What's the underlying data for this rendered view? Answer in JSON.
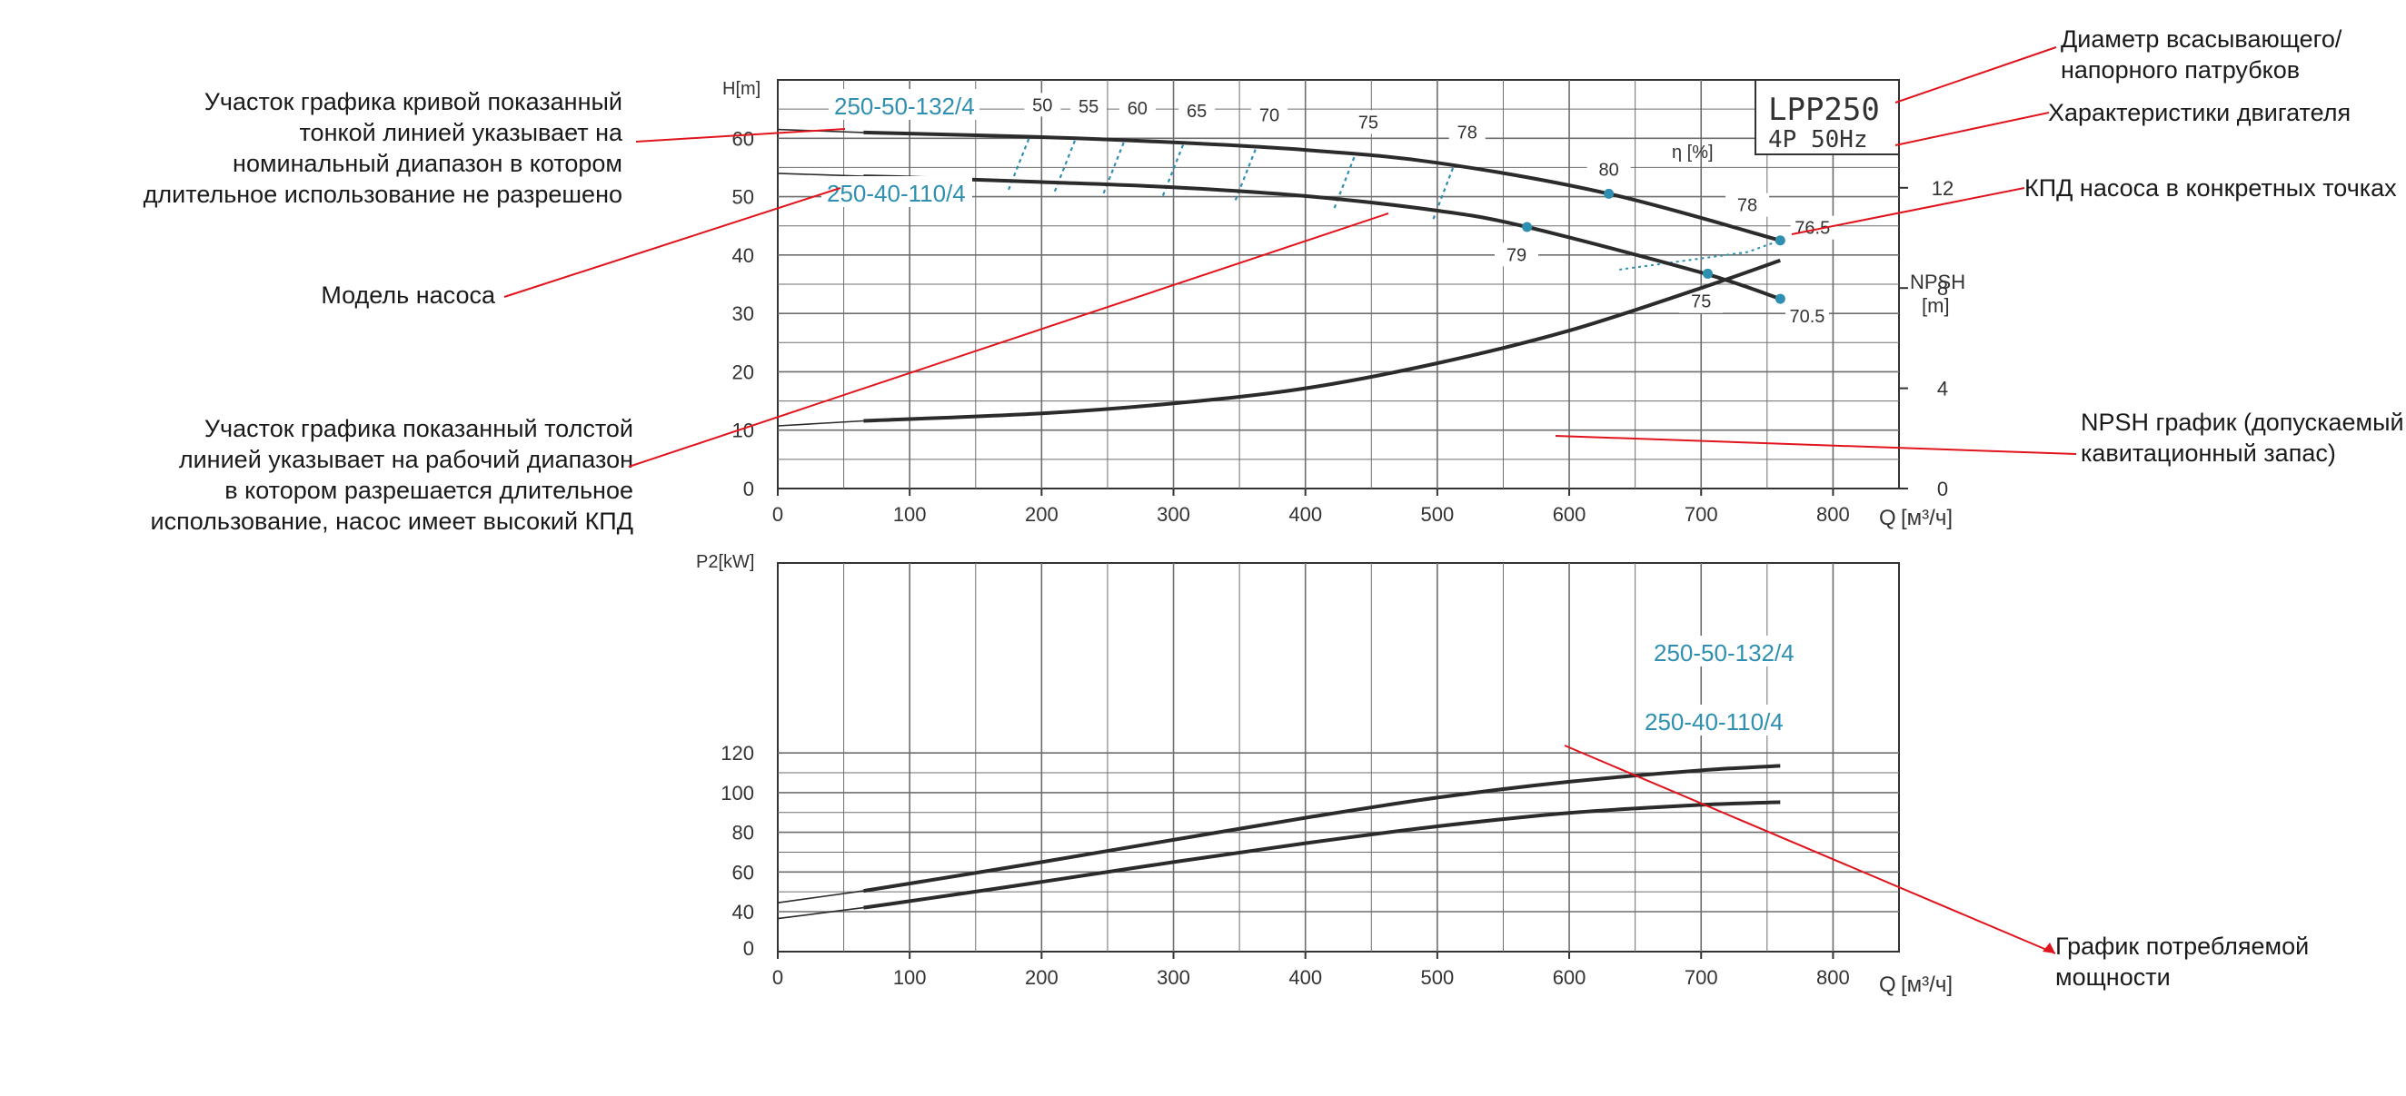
{
  "chart_data": [
    {
      "type": "line",
      "title": "",
      "ylabel": "H[m]",
      "y2label_line1": "NPSH",
      "y2label_line2": "[m]",
      "xlabel_prefix": "Q",
      "xlabel_units": "[м³/ч]",
      "xlim": [
        0,
        850
      ],
      "ylim": [
        0,
        70
      ],
      "y2lim": [
        0,
        24
      ],
      "x_ticks": [
        0,
        100,
        200,
        300,
        400,
        500,
        600,
        700,
        800
      ],
      "y_ticks": [
        0,
        10,
        20,
        30,
        40,
        50,
        60
      ],
      "y2_ticks": [
        0,
        4,
        8,
        12
      ],
      "grid": true,
      "model_box": {
        "line1": "LPP250",
        "line2": "4P  50Hz"
      },
      "efficiency_axis_label": "η [%]",
      "series": [
        {
          "name": "250-50-132/4",
          "color": "#2b2b2b",
          "x": [
            0,
            65,
            100,
            200,
            300,
            400,
            500,
            630,
            760
          ],
          "y": [
            61.5,
            61.0,
            60.8,
            60.2,
            59.3,
            58.0,
            55.8,
            50.5,
            42.5
          ],
          "markers": [
            {
              "x": 630,
              "y": 50.5
            },
            {
              "x": 760,
              "y": 42.5
            }
          ]
        },
        {
          "name": "250-40-110/4",
          "color": "#2b2b2b",
          "x": [
            0,
            65,
            100,
            200,
            300,
            400,
            500,
            568,
            700,
            760
          ],
          "y": [
            54.0,
            53.5,
            53.3,
            52.5,
            51.6,
            50.1,
            47.6,
            44.8,
            37.0,
            32.5
          ],
          "markers": [
            {
              "x": 568,
              "y": 44.8
            },
            {
              "x": 705,
              "y": 36.8
            },
            {
              "x": 760,
              "y": 32.5
            }
          ]
        }
      ],
      "npsh_series": {
        "x": [
          0,
          65,
          200,
          300,
          400,
          500,
          600,
          700,
          760
        ],
        "y": [
          2.5,
          2.7,
          3.0,
          3.4,
          4.0,
          5.0,
          6.3,
          8.0,
          9.1
        ]
      },
      "efficiency_lines": [
        {
          "label": "50",
          "x": 183
        },
        {
          "label": "55",
          "x": 218
        },
        {
          "label": "60",
          "x": 255
        },
        {
          "label": "65",
          "x": 300
        },
        {
          "label": "70",
          "x": 355
        },
        {
          "label": "75",
          "x": 430
        },
        {
          "label": "78",
          "x": 505
        }
      ],
      "efficiency_points": [
        {
          "label": "80",
          "x": 630
        },
        {
          "label": "78",
          "x": 735
        },
        {
          "label": "76.5",
          "x": 772
        },
        {
          "label": "79",
          "x": 560
        },
        {
          "label": "75",
          "x": 700
        },
        {
          "label": "70.5",
          "x": 768
        }
      ]
    },
    {
      "type": "line",
      "title": "",
      "ylabel": "P2[kW]",
      "xlabel_prefix": "Q",
      "xlabel_units": "[м³/ч]",
      "xlim": [
        0,
        850
      ],
      "ylim": [
        30,
        130
      ],
      "y_ticks_labeled": [
        40,
        60,
        80,
        100,
        120
      ],
      "zero_label": "0",
      "grid": true,
      "series": [
        {
          "name": "250-50-132/4",
          "color": "#2b2b2b",
          "x": [
            0,
            65,
            100,
            200,
            300,
            400,
            500,
            600,
            700,
            760
          ],
          "y": [
            44.5,
            50.5,
            54.2,
            65.0,
            76.2,
            87.3,
            97.5,
            105.5,
            111.2,
            113.5
          ]
        },
        {
          "name": "250-40-110/4",
          "color": "#2b2b2b",
          "x": [
            0,
            65,
            100,
            200,
            300,
            400,
            500,
            600,
            700,
            760
          ],
          "y": [
            36.5,
            42.0,
            45.3,
            55.0,
            65.0,
            74.5,
            83.0,
            89.8,
            93.8,
            95.2
          ]
        }
      ]
    }
  ],
  "annotations": {
    "thin_line_note": [
      "Участок графика кривой показанный",
      "тонкой линией указывает на",
      "номинальный диапазон в котором",
      "длительное использование не разрешено"
    ],
    "pump_model_note": [
      "Модель насоса"
    ],
    "thick_line_note": [
      "Участок графика показанный толстой",
      "линией указывает на рабочий диапазон",
      "в котором разрешается длительное",
      "использование, насос имеет высокий КПД"
    ],
    "diameter_note": [
      "Диаметр всасывающего/",
      "напорного патрубков"
    ],
    "motor_note": [
      "Характеристики двигателя"
    ],
    "efficiency_note": [
      "КПД насоса в конкретных точках"
    ],
    "npsh_note": [
      "NPSH график (допускаемый",
      "кавитационный запас)"
    ],
    "power_note": [
      "График потребляемой",
      "мощности"
    ]
  },
  "colors": {
    "curve": "#2b2b2b",
    "model_label": "#2f8fb0",
    "efficiency_dots": "#2f8fb0",
    "callout_line": "#e0141c",
    "grid": "#6e6e6e"
  }
}
